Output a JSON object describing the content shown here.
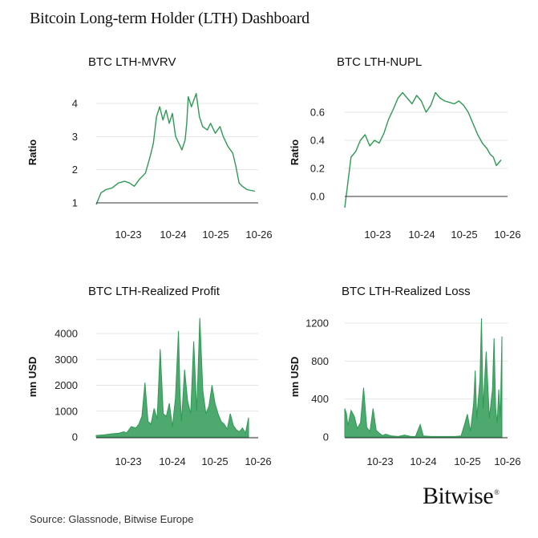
{
  "dashboard_title": "Bitcoin Long-term Holder (LTH) Dashboard",
  "source": "Source: Glassnode, Bitwise Europe",
  "logo": {
    "text": "Bitwise",
    "mark": "®"
  },
  "colors": {
    "line": "#2e9a55",
    "axis": "#333333",
    "grid": "#e4e4e4"
  },
  "chart_data": [
    {
      "id": "mvrv",
      "type": "line",
      "title": "BTC LTH-MVRV",
      "ylabel": "Ratio",
      "xlabel": "",
      "ylim": [
        1,
        4.3
      ],
      "yticks": [
        1,
        2,
        3,
        4
      ],
      "xticks": [
        "10-23",
        "10-24",
        "10-25",
        "10-26"
      ],
      "grid": true,
      "series": [
        {
          "x": [
            0.0,
            0.03,
            0.06,
            0.1,
            0.14,
            0.18,
            0.21,
            0.24,
            0.27,
            0.31,
            0.34,
            0.36,
            0.38,
            0.4,
            0.42,
            0.44,
            0.46,
            0.48,
            0.5,
            0.52,
            0.54,
            0.56,
            0.57,
            0.58,
            0.6,
            0.63,
            0.65,
            0.67,
            0.7,
            0.72,
            0.75,
            0.78,
            0.8,
            0.83,
            0.86,
            0.88,
            0.9,
            0.92,
            0.95,
            1.0
          ],
          "y": [
            0.95,
            1.3,
            1.4,
            1.45,
            1.6,
            1.65,
            1.6,
            1.5,
            1.7,
            1.9,
            2.4,
            2.8,
            3.6,
            3.9,
            3.5,
            3.8,
            3.4,
            3.7,
            3.0,
            2.8,
            2.6,
            2.9,
            3.4,
            4.2,
            3.9,
            4.3,
            3.6,
            3.3,
            3.2,
            3.4,
            3.1,
            3.3,
            3.0,
            2.7,
            2.5,
            2.1,
            1.6,
            1.5,
            1.4,
            1.35
          ]
        }
      ]
    },
    {
      "id": "nupl",
      "type": "line",
      "title": "BTC LTH-NUPL",
      "ylabel": "Ratio",
      "xlabel": "",
      "ylim": [
        0,
        0.75
      ],
      "yticks": [
        0.0,
        0.2,
        0.4,
        0.6
      ],
      "xticks": [
        "10-23",
        "10-24",
        "10-25",
        "10-26"
      ],
      "grid": true,
      "series": [
        {
          "x": [
            0.0,
            0.02,
            0.04,
            0.07,
            0.1,
            0.13,
            0.16,
            0.19,
            0.22,
            0.25,
            0.28,
            0.31,
            0.34,
            0.37,
            0.4,
            0.43,
            0.46,
            0.49,
            0.52,
            0.55,
            0.58,
            0.61,
            0.64,
            0.67,
            0.7,
            0.73,
            0.76,
            0.79,
            0.82,
            0.85,
            0.88,
            0.91,
            0.93,
            0.95,
            0.97,
            1.0
          ],
          "y": [
            -0.08,
            0.1,
            0.28,
            0.32,
            0.4,
            0.44,
            0.36,
            0.4,
            0.38,
            0.45,
            0.55,
            0.62,
            0.7,
            0.74,
            0.7,
            0.66,
            0.72,
            0.68,
            0.6,
            0.65,
            0.74,
            0.7,
            0.68,
            0.67,
            0.66,
            0.68,
            0.65,
            0.6,
            0.52,
            0.44,
            0.38,
            0.34,
            0.3,
            0.28,
            0.22,
            0.26
          ]
        }
      ]
    },
    {
      "id": "profit",
      "type": "area",
      "title": "BTC LTH-Realized Profit",
      "ylabel": "mn USD",
      "xlabel": "",
      "ylim": [
        0,
        4700
      ],
      "yticks": [
        0,
        1000,
        2000,
        3000,
        4000
      ],
      "xticks": [
        "10-23",
        "10-24",
        "10-25",
        "10-26"
      ],
      "grid": true,
      "series": [
        {
          "x": [
            0.0,
            0.05,
            0.1,
            0.15,
            0.18,
            0.2,
            0.23,
            0.26,
            0.28,
            0.3,
            0.32,
            0.34,
            0.36,
            0.38,
            0.4,
            0.42,
            0.44,
            0.46,
            0.48,
            0.5,
            0.52,
            0.54,
            0.55,
            0.56,
            0.58,
            0.6,
            0.62,
            0.64,
            0.66,
            0.68,
            0.7,
            0.72,
            0.74,
            0.76,
            0.78,
            0.8,
            0.82,
            0.84,
            0.86,
            0.88,
            0.9,
            0.92,
            0.94,
            0.96,
            0.98,
            1.0
          ],
          "y": [
            60,
            80,
            120,
            150,
            200,
            160,
            400,
            350,
            500,
            800,
            2100,
            600,
            500,
            1100,
            700,
            3400,
            900,
            800,
            1300,
            400,
            1500,
            4100,
            1700,
            600,
            2600,
            1400,
            900,
            3700,
            1000,
            4600,
            1800,
            900,
            1200,
            2000,
            1300,
            900,
            600,
            500,
            300,
            900,
            450,
            280,
            200,
            350,
            150,
            750
          ]
        }
      ]
    },
    {
      "id": "loss",
      "type": "area",
      "title": "BTC LTH-Realized Loss",
      "ylabel": "mn USD",
      "xlabel": "",
      "ylim": [
        0,
        1260
      ],
      "yticks": [
        0,
        400,
        800,
        1200
      ],
      "xticks": [
        "10-23",
        "10-24",
        "10-25",
        "10-26"
      ],
      "grid": true,
      "series": [
        {
          "x": [
            0.0,
            0.01,
            0.02,
            0.04,
            0.06,
            0.08,
            0.1,
            0.12,
            0.14,
            0.16,
            0.18,
            0.2,
            0.22,
            0.24,
            0.26,
            0.3,
            0.34,
            0.38,
            0.42,
            0.45,
            0.48,
            0.5,
            0.55,
            0.6,
            0.65,
            0.7,
            0.74,
            0.76,
            0.78,
            0.8,
            0.82,
            0.83,
            0.84,
            0.86,
            0.87,
            0.88,
            0.9,
            0.92,
            0.94,
            0.95,
            0.96,
            0.97,
            0.98,
            0.99,
            1.0
          ],
          "y": [
            300,
            250,
            120,
            280,
            220,
            90,
            150,
            520,
            100,
            60,
            300,
            70,
            40,
            15,
            30,
            10,
            5,
            20,
            5,
            5,
            130,
            10,
            5,
            5,
            5,
            5,
            10,
            120,
            240,
            60,
            350,
            700,
            200,
            600,
            1250,
            300,
            900,
            200,
            500,
            1040,
            300,
            150,
            500,
            200,
            1060
          ]
        }
      ]
    }
  ]
}
